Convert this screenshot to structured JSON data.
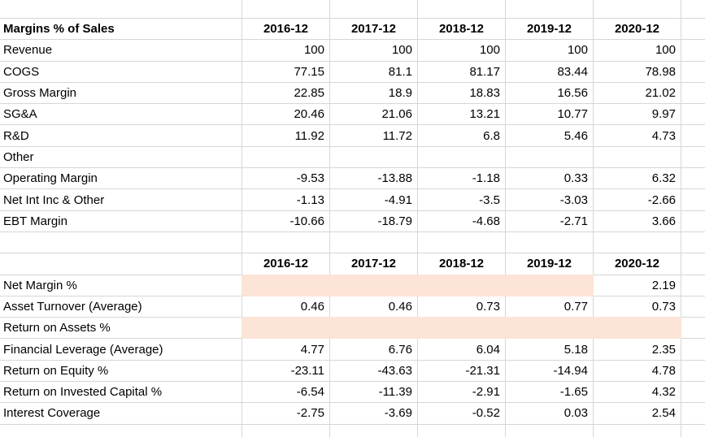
{
  "sheet": {
    "colors": {
      "highlight": "#fce4d6",
      "gridline": "#d6d6d6",
      "text": "#000000",
      "background": "#ffffff"
    },
    "section1": {
      "title": "Margins % of Sales",
      "header": [
        "2016-12",
        "2017-12",
        "2018-12",
        "2019-12",
        "2020-12"
      ],
      "rows": [
        {
          "label": "Revenue",
          "values": [
            "100",
            "100",
            "100",
            "100",
            "100"
          ]
        },
        {
          "label": "COGS",
          "values": [
            "77.15",
            "81.1",
            "81.17",
            "83.44",
            "78.98"
          ]
        },
        {
          "label": "Gross Margin",
          "values": [
            "22.85",
            "18.9",
            "18.83",
            "16.56",
            "21.02"
          ]
        },
        {
          "label": "SG&A",
          "values": [
            "20.46",
            "21.06",
            "13.21",
            "10.77",
            "9.97"
          ]
        },
        {
          "label": "R&D",
          "values": [
            "11.92",
            "11.72",
            "6.8",
            "5.46",
            "4.73"
          ]
        },
        {
          "label": "Other",
          "values": [
            "",
            "",
            "",
            "",
            ""
          ]
        },
        {
          "label": "Operating Margin",
          "values": [
            "-9.53",
            "-13.88",
            "-1.18",
            "0.33",
            "6.32"
          ]
        },
        {
          "label": "Net Int Inc & Other",
          "values": [
            "-1.13",
            "-4.91",
            "-3.5",
            "-3.03",
            "-2.66"
          ]
        },
        {
          "label": "EBT Margin",
          "values": [
            "-10.66",
            "-18.79",
            "-4.68",
            "-2.71",
            "3.66"
          ]
        }
      ]
    },
    "section2": {
      "header": [
        "2016-12",
        "2017-12",
        "2018-12",
        "2019-12",
        "2020-12"
      ],
      "rows": [
        {
          "label": "Net Margin %",
          "values": [
            "",
            "",
            "",
            "",
            "2.19"
          ],
          "highlight": [
            true,
            true,
            true,
            true,
            false
          ]
        },
        {
          "label": "Asset Turnover (Average)",
          "values": [
            "0.46",
            "0.46",
            "0.73",
            "0.77",
            "0.73"
          ]
        },
        {
          "label": "Return on Assets %",
          "values": [
            "",
            "",
            "",
            "",
            ""
          ],
          "highlight": [
            true,
            true,
            true,
            true,
            true
          ]
        },
        {
          "label": "Financial Leverage (Average)",
          "values": [
            "4.77",
            "6.76",
            "6.04",
            "5.18",
            "2.35"
          ]
        },
        {
          "label": "Return on Equity %",
          "values": [
            "-23.11",
            "-43.63",
            "-21.31",
            "-14.94",
            "4.78"
          ]
        },
        {
          "label": "Return on Invested Capital %",
          "values": [
            "-6.54",
            "-11.39",
            "-2.91",
            "-1.65",
            "4.32"
          ]
        },
        {
          "label": "Interest Coverage",
          "values": [
            "-2.75",
            "-3.69",
            "-0.52",
            "0.03",
            "2.54"
          ]
        }
      ]
    }
  }
}
